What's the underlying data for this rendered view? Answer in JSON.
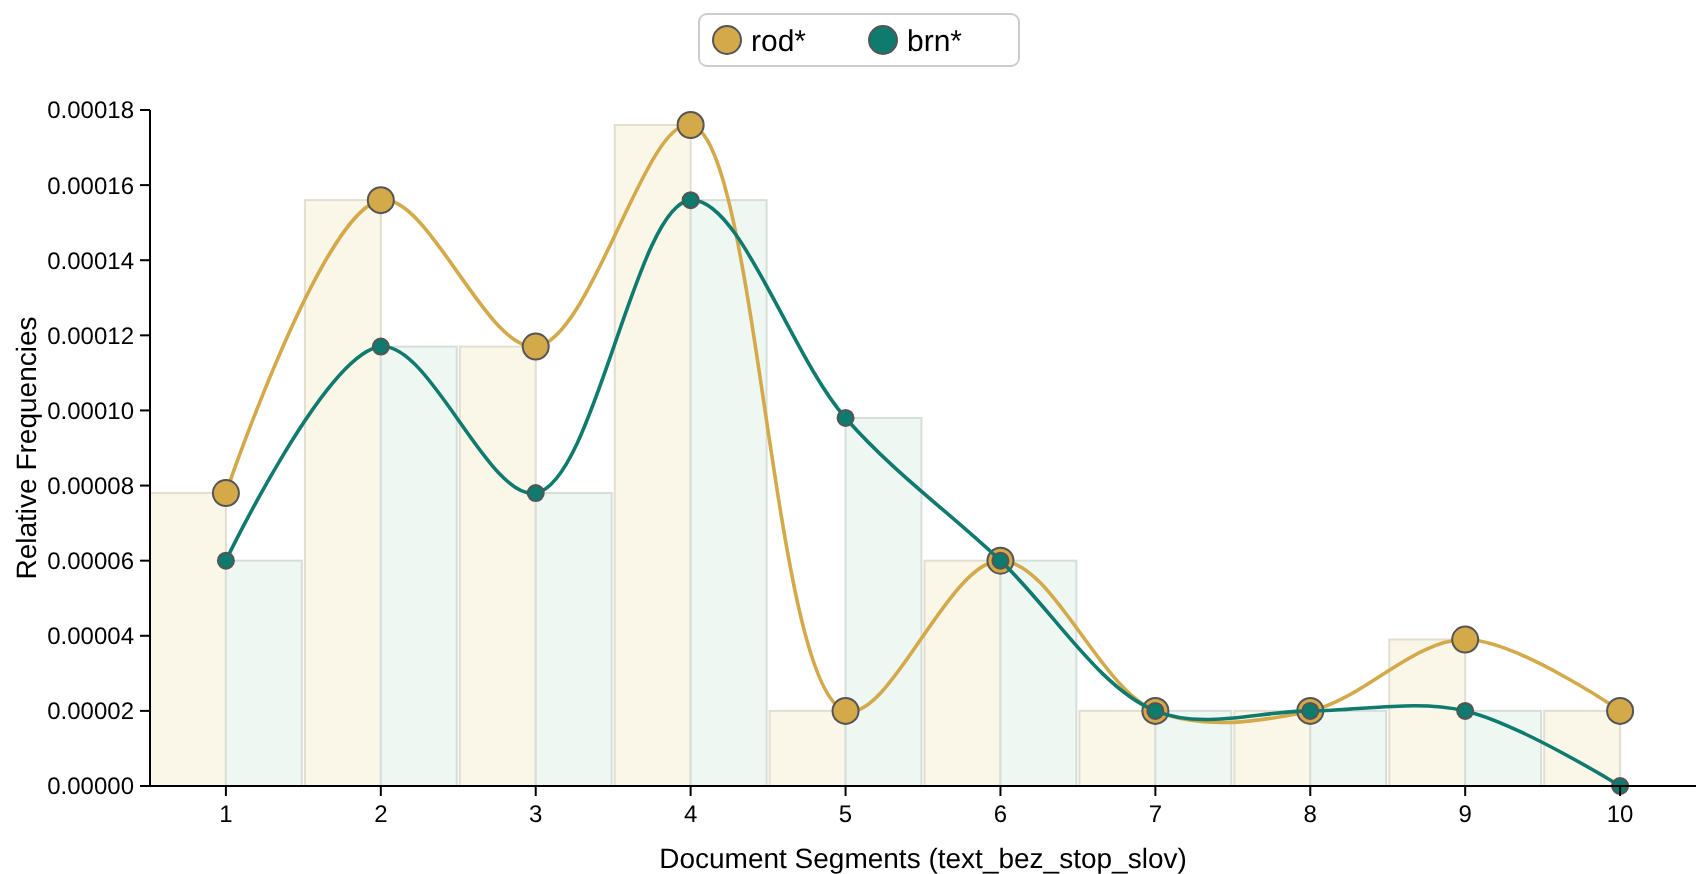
{
  "chart_data": {
    "type": "line",
    "xlabel": "Document Segments (text_bez_stop_slov)",
    "ylabel": "Relative Frequencies",
    "categories": [
      "1",
      "2",
      "3",
      "4",
      "5",
      "6",
      "7",
      "8",
      "9",
      "10"
    ],
    "ylim": [
      0,
      0.00018
    ],
    "yticks": [
      {
        "value": 0,
        "label": "0.00000"
      },
      {
        "value": 2e-05,
        "label": "0.00002"
      },
      {
        "value": 4e-05,
        "label": "0.00004"
      },
      {
        "value": 6e-05,
        "label": "0.00006"
      },
      {
        "value": 8e-05,
        "label": "0.00008"
      },
      {
        "value": 0.0001,
        "label": "0.00010"
      },
      {
        "value": 0.00012,
        "label": "0.00012"
      },
      {
        "value": 0.00014,
        "label": "0.00014"
      },
      {
        "value": 0.00016,
        "label": "0.00016"
      },
      {
        "value": 0.00018,
        "label": "0.00018"
      }
    ],
    "grid": false,
    "legend": "top",
    "marker": "circle",
    "line_style": "solid",
    "series": [
      {
        "type": "bar",
        "color": "#fbf7e8",
        "values": [
          7.8e-05,
          0.000156,
          0.000117,
          0.000176,
          2e-05,
          6e-05,
          2e-05,
          2e-05,
          3.9e-05,
          2e-05
        ]
      },
      {
        "type": "bar",
        "color": "#eef7f2",
        "values": [
          6e-05,
          0.000117,
          7.8e-05,
          0.000156,
          9.8e-05,
          6e-05,
          2e-05,
          2e-05,
          2e-05,
          0
        ]
      },
      {
        "name": "rod*",
        "color": "#d4a94a",
        "values": [
          7.8e-05,
          0.000156,
          0.000117,
          0.000176,
          2e-05,
          6e-05,
          2e-05,
          2e-05,
          3.9e-05,
          2e-05
        ]
      },
      {
        "name": "brn*",
        "color": "#0f7a6e",
        "values": [
          6e-05,
          0.000117,
          7.8e-05,
          0.000156,
          9.8e-05,
          6e-05,
          2e-05,
          2e-05,
          2e-05,
          0
        ]
      }
    ]
  }
}
